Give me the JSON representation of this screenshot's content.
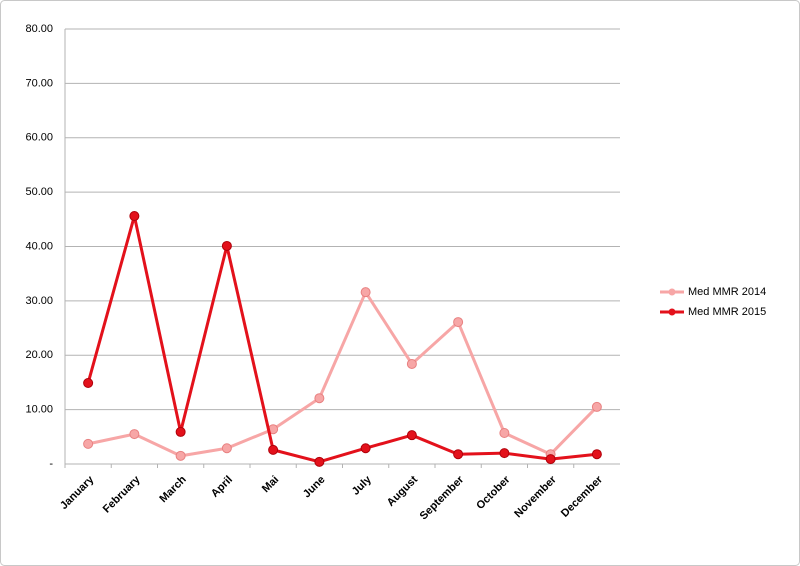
{
  "chart_data": {
    "type": "line",
    "categories": [
      "January",
      "February",
      "March",
      "April",
      "Mai",
      "June",
      "July",
      "August",
      "September",
      "October",
      "November",
      "December"
    ],
    "series": [
      {
        "name": "Med MMR 2014",
        "color": "#f7a6a6",
        "values": [
          3.7,
          5.5,
          1.5,
          2.9,
          6.4,
          12.1,
          31.6,
          18.4,
          26.1,
          5.7,
          1.8,
          10.5
        ]
      },
      {
        "name": "Med MMR 2015",
        "color": "#e3111b",
        "values": [
          14.9,
          45.6,
          5.9,
          40.1,
          2.6,
          0.4,
          2.9,
          5.3,
          1.8,
          2.0,
          0.9,
          1.8
        ]
      }
    ],
    "ylim": [
      0,
      80
    ],
    "yticks": [
      {
        "value": 0,
        "label": "-"
      },
      {
        "value": 10,
        "label": "10.00"
      },
      {
        "value": 20,
        "label": "20.00"
      },
      {
        "value": 30,
        "label": "30.00"
      },
      {
        "value": 40,
        "label": "40.00"
      },
      {
        "value": 50,
        "label": "50.00"
      },
      {
        "value": 60,
        "label": "60.00"
      },
      {
        "value": 70,
        "label": "70.00"
      },
      {
        "value": 80,
        "label": "80.00"
      }
    ],
    "grid": true,
    "legend": "right"
  }
}
